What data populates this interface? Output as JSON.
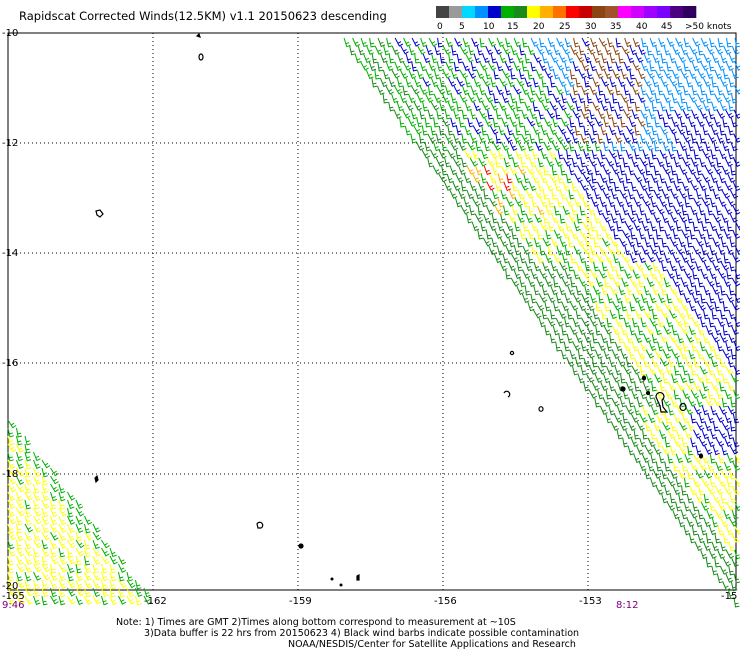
{
  "title": "Rapidscat Corrected Winds(12.5KM) v1.1 20150623 descending",
  "colorbar": {
    "ticks": [
      "0",
      "5",
      "10",
      "15",
      "20",
      "25",
      "30",
      "35",
      "40",
      "45",
      ">50 knots"
    ],
    "colors": [
      "#444444",
      "#9a9a9a",
      "#00d8ff",
      "#0090ff",
      "#0000cd",
      "#00b000",
      "#1a8a1a",
      "#ffff00",
      "#ffb000",
      "#ff7000",
      "#ff0000",
      "#c80000",
      "#8b4513",
      "#a0522d",
      "#ff00ff",
      "#d000ff",
      "#a000ff",
      "#7a00ff",
      "#4b0082",
      "#300060"
    ]
  },
  "axes": {
    "lon_labels": [
      "-165",
      "-162",
      "-159",
      "-156",
      "-153",
      "-15"
    ],
    "lat_labels": [
      "-10",
      "-12",
      "-14",
      "-16",
      "-18",
      "-20"
    ]
  },
  "swath_times": {
    "left": "9:46",
    "right": "8:12"
  },
  "notes": [
    "Note: 1) Times are GMT 2)Times along bottom correspond to measurement at ~10S",
    "3)Data buffer is 22 hrs from 20150623 4) Black wind barbs indicate possible contamination",
    "NOAA/NESDIS/Center for Satellite Applications and Research"
  ],
  "barb_colors": {
    "blue": "#0000cd",
    "light_blue": "#0090ff",
    "green": "#00b000",
    "dark_green": "#1a8a1a",
    "yellow": "#ffff00",
    "orange": "#ffb000",
    "red": "#ff0000",
    "brown": "#8b4513"
  }
}
